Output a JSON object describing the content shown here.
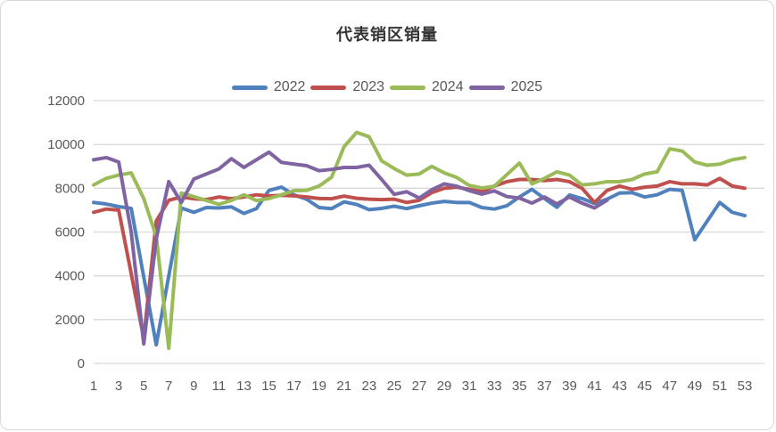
{
  "chart_data": {
    "type": "line",
    "title": "代表销区销量",
    "xlabel": "",
    "ylabel": "",
    "x_unit": "week",
    "x_range": [
      1,
      53
    ],
    "x_tick_labels": [
      "1",
      "3",
      "5",
      "7",
      "9",
      "11",
      "13",
      "15",
      "17",
      "19",
      "21",
      "23",
      "25",
      "27",
      "29",
      "31",
      "33",
      "35",
      "37",
      "39",
      "41",
      "43",
      "45",
      "47",
      "49",
      "51",
      "53"
    ],
    "ylim": [
      0,
      12000
    ],
    "y_ticks": [
      "0",
      "2000",
      "4000",
      "6000",
      "8000",
      "10000",
      "12000"
    ],
    "grid": "horizontal",
    "legend_position": "top-center",
    "series": [
      {
        "name": "2022",
        "color": "#4F81BD",
        "values": [
          7350,
          7280,
          7160,
          7080,
          3950,
          850,
          4000,
          7100,
          6900,
          7120,
          7100,
          7150,
          6850,
          7070,
          7900,
          8050,
          7700,
          7500,
          7120,
          7070,
          7380,
          7260,
          7020,
          7080,
          7180,
          7070,
          7200,
          7320,
          7400,
          7350,
          7350,
          7120,
          7050,
          7200,
          7600,
          7950,
          7530,
          7130,
          7690,
          7530,
          7300,
          7500,
          7780,
          7800,
          7600,
          7700,
          7950,
          7900,
          5650,
          6500,
          7350,
          6900,
          6750
        ]
      },
      {
        "name": "2023",
        "color": "#C0504D",
        "values": [
          6900,
          7050,
          7000,
          4100,
          1150,
          6500,
          7450,
          7600,
          7520,
          7480,
          7600,
          7520,
          7600,
          7700,
          7650,
          7680,
          7650,
          7600,
          7530,
          7520,
          7640,
          7540,
          7500,
          7480,
          7500,
          7350,
          7450,
          7800,
          8000,
          8050,
          7950,
          7850,
          8100,
          8300,
          8400,
          8400,
          8350,
          8400,
          8300,
          8000,
          7350,
          7900,
          8100,
          7950,
          8050,
          8100,
          8300,
          8200,
          8200,
          8150,
          8450,
          8100,
          8000
        ]
      },
      {
        "name": "2024",
        "color": "#9BBB59",
        "values": [
          8150,
          8450,
          8600,
          8700,
          7530,
          5800,
          690,
          7780,
          7620,
          7440,
          7270,
          7440,
          7700,
          7440,
          7530,
          7700,
          7890,
          7900,
          8100,
          8500,
          9900,
          10550,
          10350,
          9250,
          8900,
          8600,
          8650,
          9000,
          8700,
          8490,
          8130,
          8010,
          8090,
          8620,
          9150,
          8200,
          8450,
          8750,
          8600,
          8150,
          8200,
          8300,
          8300,
          8400,
          8650,
          8750,
          9800,
          9700,
          9200,
          9050,
          9100,
          9300,
          9400
        ]
      },
      {
        "name": "2025",
        "color": "#8064A2",
        "values": [
          9300,
          9400,
          9200,
          6000,
          890,
          5700,
          8300,
          7350,
          8420,
          8650,
          8880,
          9350,
          8950,
          9300,
          9650,
          9180,
          9100,
          9030,
          8800,
          8860,
          8950,
          8950,
          9050,
          8400,
          7720,
          7840,
          7550,
          7930,
          8200,
          8090,
          7890,
          7730,
          7880,
          7620,
          7550,
          7320,
          7600,
          7280,
          7600,
          7320,
          7100,
          7450,
          null,
          null,
          null,
          null,
          null,
          null,
          null,
          null,
          null,
          null,
          null
        ]
      }
    ]
  },
  "style": {
    "gridline_color": "#d9d9d9",
    "axis_label_color": "#595959",
    "title_color": "#333333",
    "background_color": "#ffffff",
    "line_width": 4
  }
}
